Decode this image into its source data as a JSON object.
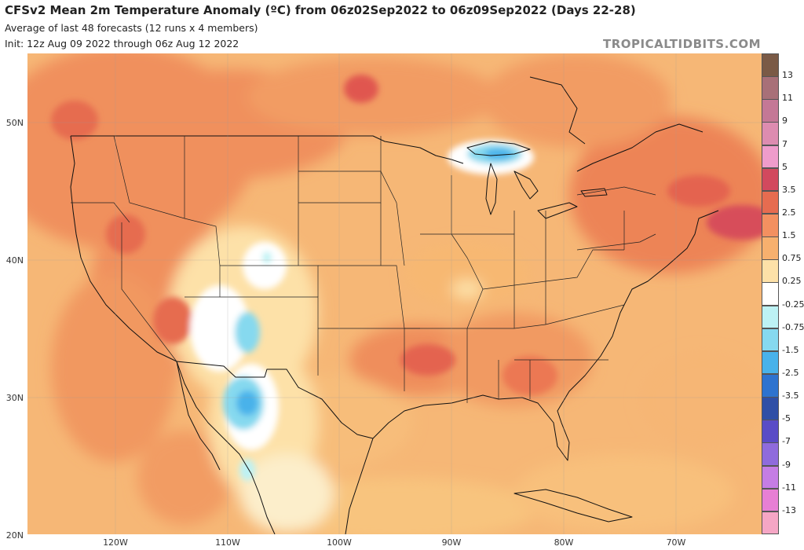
{
  "header": {
    "title": "CFSv2 Mean 2m Temperature Anomaly (ºC) from 06z02Sep2022 to 06z09Sep2022 (Days 22-28)",
    "subtitle": "Average of last 48 forecasts (12 runs x 4 members)",
    "init": "Init: 12z Aug 09 2022 through 06z Aug 12 2022",
    "brand": "TROPICALTIDBITS.COM"
  },
  "axes": {
    "lat_labels": [
      "50N",
      "40N",
      "30N",
      "20N"
    ],
    "lon_labels": [
      "120W",
      "110W",
      "100W",
      "90W",
      "80W",
      "70W"
    ]
  },
  "colorbar": {
    "levels": [
      "13",
      "11",
      "9",
      "7",
      "5",
      "3.5",
      "2.5",
      "1.5",
      "0.75",
      "0.25",
      "-0.25",
      "-0.75",
      "-1.5",
      "-2.5",
      "-3.5",
      "-5",
      "-7",
      "-9",
      "-11",
      "-13"
    ],
    "colors": [
      "#7a5a46",
      "#a87078",
      "#c47896",
      "#dd8cb0",
      "#ef9ccb",
      "#d2495e",
      "#e66c50",
      "#f39060",
      "#f7b06e",
      "#fde1a8",
      "#ffffff",
      "#bdf2f4",
      "#86d9ef",
      "#48b2ea",
      "#2e73cf",
      "#2f4fa6",
      "#5a4cc6",
      "#8f6bdc",
      "#c57de4",
      "#e77fd4",
      "#f5a6c5"
    ]
  }
}
